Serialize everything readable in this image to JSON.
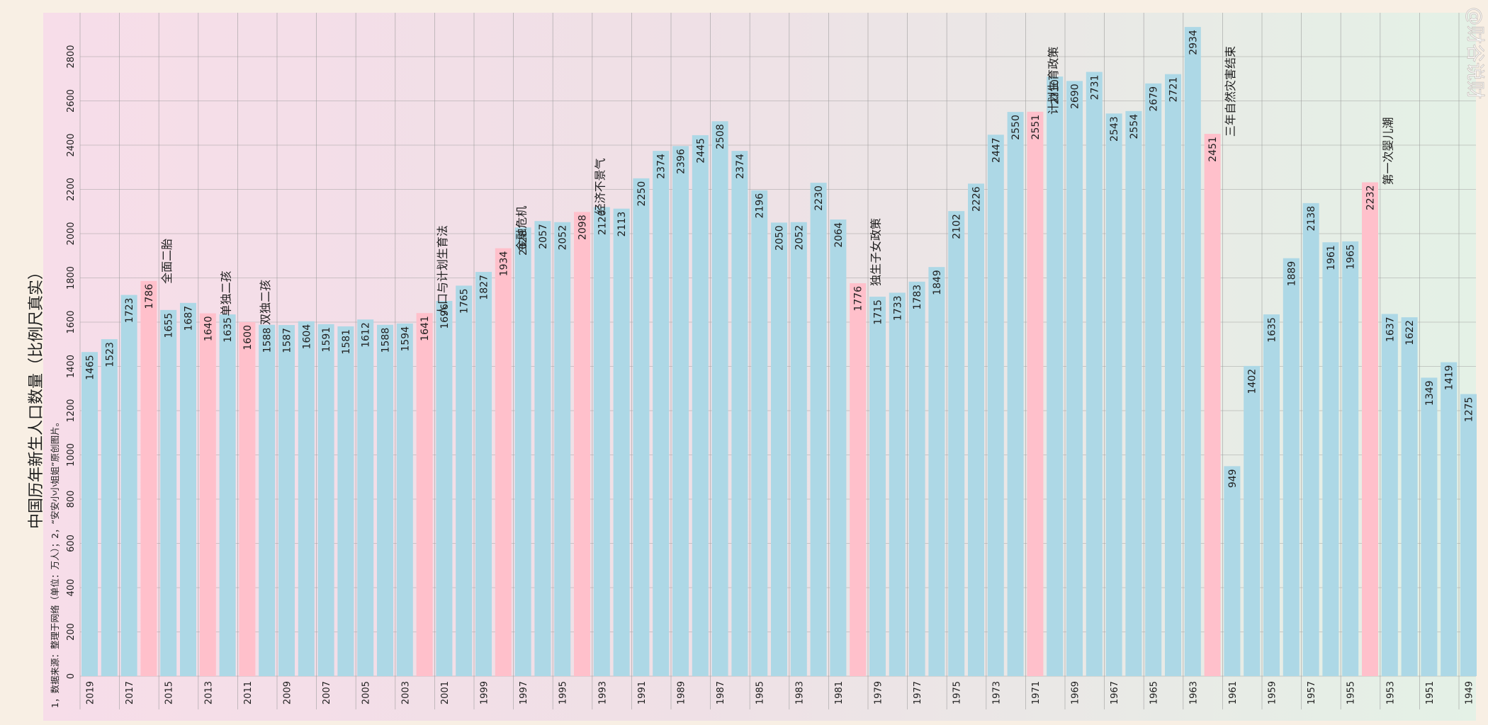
{
  "chart_data": {
    "type": "bar",
    "title": "中国历年新生人口数量（比例尺真实）",
    "note": "1，数据来源：整理于网络（单位：万人）；2，“安安小小姐姐”原创图片。",
    "watermark": "@财谷说财",
    "ylim": [
      0,
      3000
    ],
    "y_ticks": [
      0,
      200,
      400,
      600,
      800,
      1000,
      1200,
      1400,
      1600,
      1800,
      2000,
      2200,
      2400,
      2600,
      2800
    ],
    "grid": true,
    "categories": [
      2019,
      2018,
      2017,
      2016,
      2015,
      2014,
      2013,
      2012,
      2011,
      2010,
      2009,
      2008,
      2007,
      2006,
      2005,
      2004,
      2003,
      2002,
      2001,
      2000,
      1999,
      1998,
      1997,
      1996,
      1995,
      1994,
      1993,
      1992,
      1991,
      1990,
      1989,
      1988,
      1987,
      1986,
      1985,
      1984,
      1983,
      1982,
      1981,
      1980,
      1979,
      1978,
      1977,
      1976,
      1975,
      1974,
      1973,
      1972,
      1971,
      1970,
      1969,
      1968,
      1967,
      1966,
      1965,
      1964,
      1963,
      1962,
      1961,
      1960,
      1959,
      1958,
      1957,
      1956,
      1955,
      1954,
      1953,
      1952,
      1951,
      1950,
      1949
    ],
    "values": [
      1465,
      1523,
      1723,
      1786,
      1655,
      1687,
      1640,
      1635,
      1600,
      1588,
      1587,
      1604,
      1591,
      1581,
      1612,
      1588,
      1594,
      1641,
      1696,
      1765,
      1827,
      1934,
      2028,
      2057,
      2052,
      2098,
      2120,
      2113,
      2250,
      2374,
      2396,
      2445,
      2508,
      2374,
      2196,
      2050,
      2052,
      2230,
      2064,
      1776,
      1715,
      1733,
      1783,
      1849,
      2102,
      2226,
      2447,
      2550,
      2551,
      2710,
      2690,
      2731,
      2543,
      2554,
      2679,
      2721,
      2934,
      2451,
      949,
      1402,
      1635,
      1889,
      2138,
      1961,
      1965,
      2232,
      1637,
      1622,
      1349,
      1419,
      1275
    ],
    "x_tick_labels": [
      "2019",
      "2017",
      "2015",
      "2013",
      "2011",
      "2009",
      "2007",
      "2005",
      "2003",
      "2001",
      "1999",
      "1997",
      "1995",
      "1993",
      "1991",
      "1989",
      "1987",
      "1985",
      "1983",
      "1981",
      "1979",
      "1977",
      "1975",
      "1973",
      "1971",
      "1969",
      "1967",
      "1965",
      "1963",
      "1961",
      "1959",
      "1957",
      "1955",
      "1953",
      "1951",
      "1949"
    ],
    "annotations": [
      {
        "year": 2016,
        "text": "全面二胎"
      },
      {
        "year": 2013,
        "text": "单独二孩"
      },
      {
        "year": 2011,
        "text": "双独二孩"
      },
      {
        "year": 2002,
        "text": "人口与计划生育法"
      },
      {
        "year": 1998,
        "text": "金融危机"
      },
      {
        "year": 1994,
        "text": "经济不景气"
      },
      {
        "year": 1980,
        "text": "独生子女政策"
      },
      {
        "year": 1971,
        "text": "计划生育政策"
      },
      {
        "year": 1962,
        "text": "三年自然灾害结束"
      },
      {
        "year": 1954,
        "text": "第一次婴儿潮"
      }
    ],
    "colors": {
      "bar": "#add8e6",
      "bar_highlight": "#ffc0cb",
      "grid": "#9a9a9a",
      "bg_left": "#f7dde9",
      "bg_right": "#e4f1e6",
      "page": "#f8efe4"
    }
  }
}
